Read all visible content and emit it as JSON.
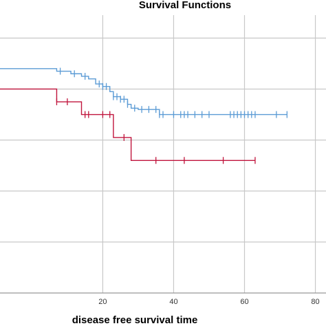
{
  "chart_data": {
    "type": "line",
    "title": "Survival Functions",
    "xlabel": "disease free survival time",
    "ylabel": "",
    "xlim": [
      -9,
      83
    ],
    "ylim": [
      0,
      1.09
    ],
    "x_ticks": [
      20,
      40,
      60,
      80
    ],
    "x_tick_labels": [
      "20",
      "40",
      "60",
      "80"
    ],
    "y_gridlines": [
      0.0,
      0.2,
      0.4,
      0.6,
      0.8,
      1.0
    ],
    "grid": true,
    "colors": {
      "blue": "#5b9bd5",
      "red": "#c0143c",
      "grid": "#c8c8c8"
    },
    "series": [
      {
        "color": "#5b9bd5",
        "steps": [
          [
            -9,
            0.88
          ],
          [
            5,
            0.88
          ],
          [
            7,
            0.87
          ],
          [
            11,
            0.86
          ],
          [
            14,
            0.85
          ],
          [
            16,
            0.84
          ],
          [
            18,
            0.82
          ],
          [
            20,
            0.81
          ],
          [
            22,
            0.79
          ],
          [
            23,
            0.77
          ],
          [
            25,
            0.76
          ],
          [
            27,
            0.74
          ],
          [
            28,
            0.725
          ],
          [
            30,
            0.72
          ],
          [
            34,
            0.72
          ],
          [
            36,
            0.7
          ],
          [
            72,
            0.7
          ]
        ],
        "censor_x": [
          8,
          12,
          15,
          19,
          20,
          21,
          23,
          24,
          25,
          26,
          27,
          29,
          31,
          33,
          35,
          36,
          37,
          40,
          42,
          43,
          44,
          46,
          48,
          50,
          56,
          57,
          58,
          59,
          60,
          61,
          62,
          63,
          69,
          72
        ]
      },
      {
        "color": "#c0143c",
        "steps": [
          [
            -9,
            0.8
          ],
          [
            6,
            0.8
          ],
          [
            7,
            0.75
          ],
          [
            13,
            0.75
          ],
          [
            14,
            0.7
          ],
          [
            23,
            0.7
          ],
          [
            23,
            0.61
          ],
          [
            28,
            0.61
          ],
          [
            28,
            0.52
          ],
          [
            63,
            0.52
          ]
        ],
        "censor_x": [
          7,
          10,
          15,
          16,
          20,
          22,
          26,
          35,
          43,
          54,
          63
        ]
      }
    ]
  }
}
